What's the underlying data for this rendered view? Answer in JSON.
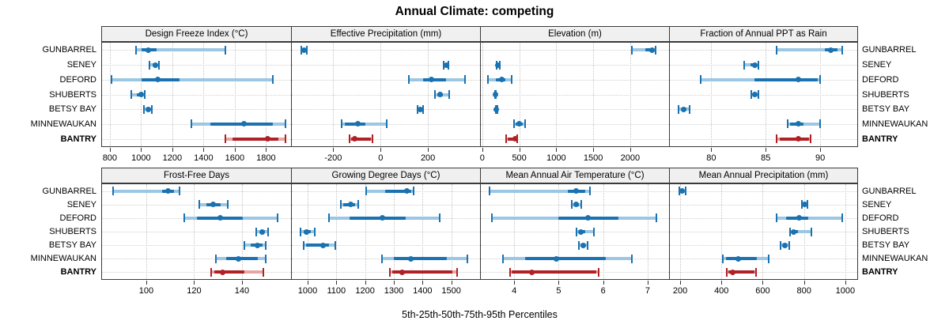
{
  "title": "Annual Climate: competing",
  "caption": "5th-25th-50th-75th-95th Percentiles",
  "colors": {
    "series": "#1a72b0",
    "series_light": "#9cc7e4",
    "highlight": "#b02126",
    "highlight_light": "#e7a6a4",
    "panel_border": "#3a3a3a",
    "strip_bg": "#f0f0f0",
    "grid": "#c8c8c8"
  },
  "chart_data": {
    "type": "dotplot-interval",
    "title": "Annual Climate: competing",
    "caption": "5th-25th-50th-75th-95th Percentiles",
    "percentiles": [
      5,
      25,
      50,
      75,
      95
    ],
    "sites": [
      "GUNBARREL",
      "SENEY",
      "DEFORD",
      "SHUBERTS",
      "BETSY BAY",
      "MINNEWAUKAN",
      "BANTRY"
    ],
    "highlight_site": "BANTRY",
    "legend_position": "none",
    "grid": true,
    "panels": [
      {
        "title": "Design Freeze Index (°C)",
        "row": 0,
        "col": 0,
        "xlim": [
          750,
          1960
        ],
        "ticks": [
          800,
          1000,
          1200,
          1400,
          1600,
          1800
        ],
        "series": [
          {
            "site": "GUNBARREL",
            "values": [
              970,
              1005,
              1045,
              1100,
              1540
            ]
          },
          {
            "site": "SENEY",
            "values": [
              1055,
              1075,
              1090,
              1105,
              1115
            ]
          },
          {
            "site": "DEFORD",
            "values": [
              810,
              1005,
              1105,
              1245,
              1845
            ]
          },
          {
            "site": "SHUBERTS",
            "values": [
              935,
              975,
              1000,
              1015,
              1025
            ]
          },
          {
            "site": "BETSY BAY",
            "values": [
              1020,
              1035,
              1045,
              1055,
              1070
            ]
          },
          {
            "site": "MINNEWAUKAN",
            "values": [
              1320,
              1445,
              1660,
              1845,
              1925
            ]
          },
          {
            "site": "BANTRY",
            "values": [
              1540,
              1585,
              1810,
              1880,
              1925
            ]
          }
        ]
      },
      {
        "title": "Effective Precipitation (mm)",
        "row": 0,
        "col": 1,
        "xlim": [
          -375,
          420
        ],
        "ticks": [
          -200,
          0,
          200
        ],
        "series": [
          {
            "site": "GUNBARREL",
            "values": [
              -335,
              -330,
              -322,
              -315,
              -310
            ]
          },
          {
            "site": "SENEY",
            "values": [
              268,
              273,
              278,
              283,
              288
            ]
          },
          {
            "site": "DEFORD",
            "values": [
              120,
              180,
              215,
              275,
              355
            ]
          },
          {
            "site": "SHUBERTS",
            "values": [
              230,
              240,
              252,
              264,
              290
            ]
          },
          {
            "site": "BETSY BAY",
            "values": [
              155,
              161,
              167,
              173,
              180
            ]
          },
          {
            "site": "MINNEWAUKAN",
            "values": [
              -165,
              -150,
              -95,
              -65,
              25
            ]
          },
          {
            "site": "BANTRY",
            "values": [
              -130,
              -125,
              -110,
              -40,
              -35
            ]
          }
        ]
      },
      {
        "title": "Elevation (m)",
        "row": 0,
        "col": 2,
        "xlim": [
          -20,
          2525
        ],
        "ticks": [
          0,
          500,
          1000,
          1500,
          2000
        ],
        "series": [
          {
            "site": "GUNBARREL",
            "values": [
              2020,
              2200,
              2300,
              2320,
              2340
            ]
          },
          {
            "site": "SENEY",
            "values": [
              195,
              205,
              215,
              222,
              232
            ]
          },
          {
            "site": "DEFORD",
            "values": [
              80,
              185,
              260,
              310,
              400
            ]
          },
          {
            "site": "SHUBERTS",
            "values": [
              168,
              173,
              178,
              182,
              187
            ]
          },
          {
            "site": "BETSY BAY",
            "values": [
              183,
              188,
              192,
              197,
              202
            ]
          },
          {
            "site": "MINNEWAUKAN",
            "values": [
              425,
              450,
              495,
              545,
              575
            ]
          },
          {
            "site": "BANTRY",
            "values": [
              320,
              345,
              440,
              460,
              470
            ]
          }
        ]
      },
      {
        "title": "Fraction of Annual PPT as Rain",
        "row": 0,
        "col": 3,
        "xlim": [
          76.2,
          93.4
        ],
        "ticks": [
          80,
          85,
          90
        ],
        "series": [
          {
            "site": "GUNBARREL",
            "values": [
              86,
              90.4,
              91,
              91.6,
              92
            ]
          },
          {
            "site": "SENEY",
            "values": [
              83,
              83.6,
              84,
              84.1,
              84.3
            ]
          },
          {
            "site": "DEFORD",
            "values": [
              79,
              84,
              88,
              89.8,
              90
            ]
          },
          {
            "site": "SHUBERTS",
            "values": [
              83.7,
              83.9,
              84,
              84.1,
              84.3
            ]
          },
          {
            "site": "BETSY BAY",
            "values": [
              77,
              77.3,
              77.5,
              77.7,
              78
            ]
          },
          {
            "site": "MINNEWAUKAN",
            "values": [
              87,
              87.2,
              88,
              88.5,
              90
            ]
          },
          {
            "site": "BANTRY",
            "values": [
              86,
              86.3,
              88,
              89,
              89.1
            ]
          }
        ]
      },
      {
        "title": "Frost-Free Days",
        "row": 1,
        "col": 0,
        "xlim": [
          81.5,
          160.5
        ],
        "ticks": [
          100,
          120,
          140
        ],
        "series": [
          {
            "site": "GUNBARREL",
            "values": [
              86,
              106.5,
              109,
              111.5,
              114
            ]
          },
          {
            "site": "SENEY",
            "values": [
              122,
              125,
              128,
              131,
              134
            ]
          },
          {
            "site": "DEFORD",
            "values": [
              116,
              121,
              131,
              140.5,
              155
            ]
          },
          {
            "site": "SHUBERTS",
            "values": [
              146,
              147.5,
              148.5,
              149.5,
              151
            ]
          },
          {
            "site": "BETSY BAY",
            "values": [
              141,
              143.5,
              146.5,
              148.5,
              150
            ]
          },
          {
            "site": "MINNEWAUKAN",
            "values": [
              129,
              133.5,
              138.5,
              146.5,
              150
            ]
          },
          {
            "site": "BANTRY",
            "values": [
              127,
              128.5,
              132,
              141,
              149
            ]
          }
        ]
      },
      {
        "title": "Growing Degree Days (°C)",
        "row": 1,
        "col": 1,
        "xlim": [
          945,
          1600
        ],
        "ticks": [
          1000,
          1100,
          1200,
          1300,
          1400,
          1500
        ],
        "series": [
          {
            "site": "GUNBARREL",
            "values": [
              1205,
              1270,
              1345,
              1360,
              1370
            ]
          },
          {
            "site": "SENEY",
            "values": [
              1115,
              1125,
              1150,
              1165,
              1175
            ]
          },
          {
            "site": "DEFORD",
            "values": [
              1075,
              1145,
              1260,
              1340,
              1460
            ]
          },
          {
            "site": "SHUBERTS",
            "values": [
              975,
              985,
              997,
              1010,
              1025
            ]
          },
          {
            "site": "BETSY BAY",
            "values": [
              985,
              995,
              1055,
              1075,
              1095
            ]
          },
          {
            "site": "MINNEWAUKAN",
            "values": [
              1260,
              1300,
              1360,
              1485,
              1555
            ]
          },
          {
            "site": "BANTRY",
            "values": [
              1285,
              1295,
              1330,
              1505,
              1520
            ]
          }
        ]
      },
      {
        "title": "Mean Annual Air Temperature (°C)",
        "row": 1,
        "col": 2,
        "xlim": [
          3.25,
          7.48
        ],
        "ticks": [
          4,
          5,
          6,
          7
        ],
        "series": [
          {
            "site": "GUNBARREL",
            "values": [
              3.45,
              5.2,
              5.4,
              5.6,
              5.7
            ]
          },
          {
            "site": "SENEY",
            "values": [
              5.3,
              5.35,
              5.4,
              5.45,
              5.5
            ]
          },
          {
            "site": "DEFORD",
            "values": [
              3.5,
              5.0,
              5.65,
              6.35,
              7.2
            ]
          },
          {
            "site": "SHUBERTS",
            "values": [
              5.4,
              5.45,
              5.5,
              5.6,
              5.8
            ]
          },
          {
            "site": "BETSY BAY",
            "values": [
              5.45,
              5.5,
              5.55,
              5.6,
              5.65
            ]
          },
          {
            "site": "MINNEWAUKAN",
            "values": [
              3.75,
              4.25,
              4.95,
              6.05,
              6.65
            ]
          },
          {
            "site": "BANTRY",
            "values": [
              3.9,
              3.95,
              4.4,
              5.85,
              5.9
            ]
          }
        ]
      },
      {
        "title": "Mean Annual Precipitation (mm)",
        "row": 1,
        "col": 3,
        "xlim": [
          150,
          1058
        ],
        "ticks": [
          200,
          400,
          600,
          800,
          1000
        ],
        "series": [
          {
            "site": "GUNBARREL",
            "values": [
              195,
              203,
              210,
              218,
              228
            ]
          },
          {
            "site": "SENEY",
            "values": [
              790,
              797,
              805,
              811,
              818
            ]
          },
          {
            "site": "DEFORD",
            "values": [
              668,
              712,
              778,
              820,
              985
            ]
          },
          {
            "site": "SHUBERTS",
            "values": [
              734,
              740,
              751,
              770,
              836
            ]
          },
          {
            "site": "BETSY BAY",
            "values": [
              687,
              696,
              706,
              715,
              728
            ]
          },
          {
            "site": "MINNEWAUKAN",
            "values": [
              406,
              422,
              480,
              573,
              630
            ]
          },
          {
            "site": "BANTRY",
            "values": [
              425,
              435,
              453,
              560,
              567
            ]
          }
        ]
      }
    ]
  }
}
